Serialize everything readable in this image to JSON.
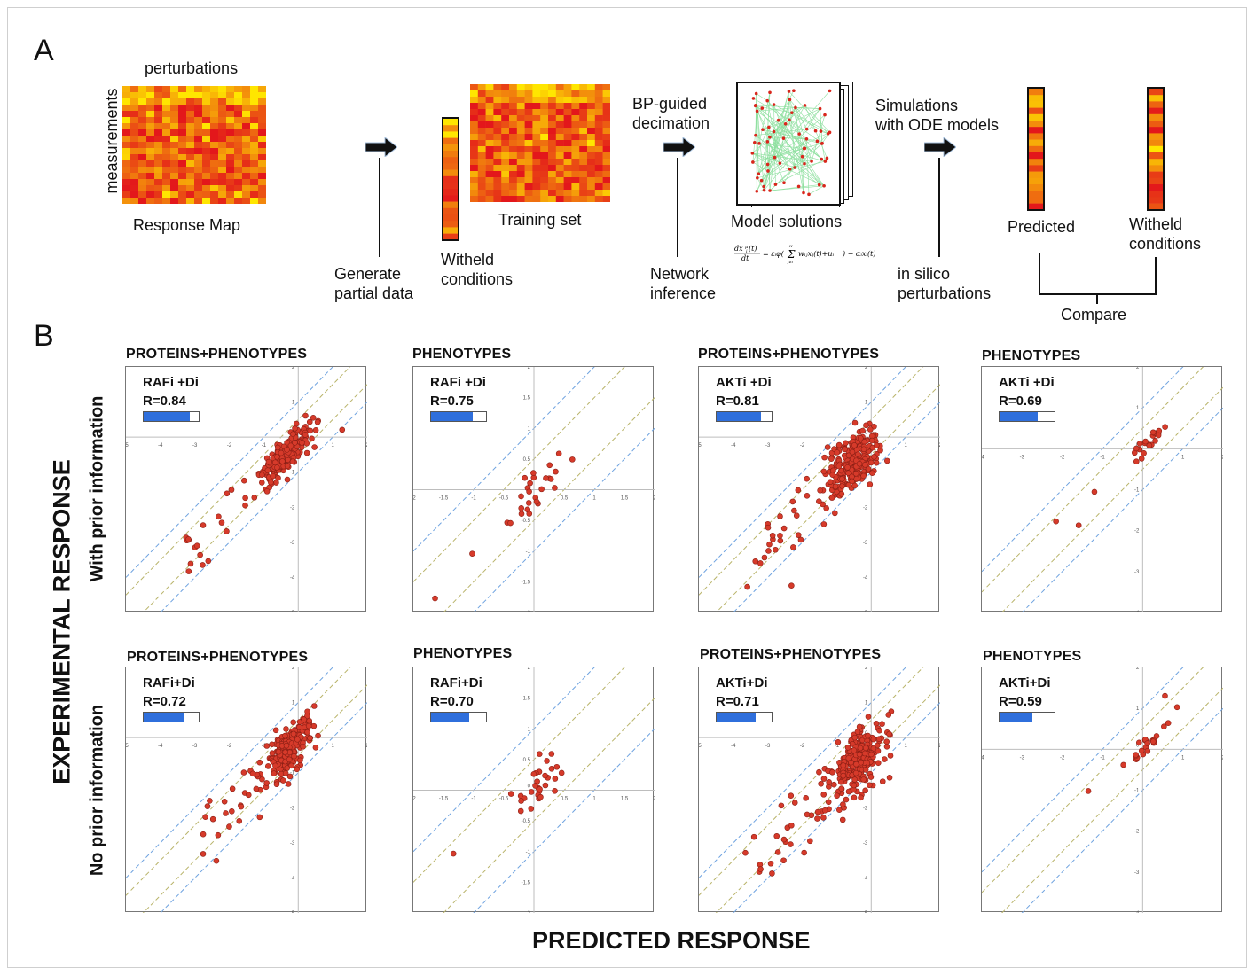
{
  "panel_a": {
    "letter": "A",
    "perturbations": "perturbations",
    "measurements": "measurements",
    "response_map": "Response Map",
    "generate_partial": [
      "Generate",
      "partial data"
    ],
    "witheld_1": [
      "Witheld",
      "conditions"
    ],
    "training_set": "Training set",
    "bp_guided": [
      "BP-guided",
      "decimation"
    ],
    "network_inference": [
      "Network",
      "inference"
    ],
    "model_solutions": "Model solutions",
    "equation": "dx_i^μ(t)/dt = ε_i φ( Σ_{j≠i}^N w_ij x_j^μ(t) + u_i^μ ) − α_i x_i^μ(t)",
    "simulations": [
      "Simulations",
      "with ODE models"
    ],
    "in_silico": [
      "in silico",
      "perturbations"
    ],
    "predicted": "Predicted",
    "witheld_2": [
      "Witheld",
      "conditions"
    ],
    "compare": "Compare"
  },
  "panel_b": {
    "letter": "B",
    "y_label": "EXPERIMENTAL RESPONSE",
    "x_label": "PREDICTED RESPONSE",
    "row_labels": [
      "With prior information",
      "No prior information"
    ]
  },
  "colors": {
    "point": "#d63a2a",
    "point_edge": "#8c1f15",
    "diag_blue": "#6fa3e0",
    "diag_olive": "#b9b46a",
    "rbar": "#2f6fdc",
    "heat_low": "#ffe600",
    "heat_high": "#e3171b"
  },
  "chart_data": [
    {
      "type": "scatter",
      "title": "PROTEINS+PHENOTYPES",
      "condition": "RAFi +Di",
      "r_label": "R=0.84",
      "r": 0.84,
      "xlim": [
        -5,
        2
      ],
      "ylim": [
        -5,
        2
      ],
      "xticks": [
        "-5",
        "-4",
        "-3",
        "-2",
        "-1",
        "0",
        "1",
        "2"
      ],
      "yticks": [
        "2",
        "1",
        "-1",
        "-2",
        "-3",
        "-4",
        "-5"
      ],
      "seed": 11,
      "n": 230,
      "spread": 0.2,
      "center": [
        -0.35,
        -0.45
      ]
    },
    {
      "type": "scatter",
      "title": "PHENOTYPES",
      "condition": "RAFi +Di",
      "r_label": "R=0.75",
      "r": 0.75,
      "xlim": [
        -2,
        2
      ],
      "ylim": [
        -2,
        2
      ],
      "xticks": [
        "-2",
        "-1.5",
        "-1",
        "-0.5",
        "0",
        "0.5",
        "1",
        "1.5",
        "2"
      ],
      "yticks": [
        "2",
        "1.5",
        "1",
        "0.5",
        "-0.5",
        "-1",
        "-1.5",
        "-2"
      ],
      "seed": 23,
      "n": 28,
      "spread": 0.12,
      "center": [
        0.05,
        0.05
      ]
    },
    {
      "type": "scatter",
      "title": "PROTEINS+PHENOTYPES",
      "condition": "AKTi +Di",
      "r_label": "R=0.81",
      "r": 0.81,
      "xlim": [
        -5,
        2
      ],
      "ylim": [
        -5,
        2
      ],
      "xticks": [
        "-5",
        "-4",
        "-3",
        "-2",
        "-1",
        "0",
        "1",
        "2"
      ],
      "yticks": [
        "2",
        "1",
        "-1",
        "-2",
        "-3",
        "-4",
        "-5"
      ],
      "seed": 37,
      "n": 270,
      "spread": 0.35,
      "center": [
        -0.5,
        -0.7
      ]
    },
    {
      "type": "scatter",
      "title": "PHENOTYPES",
      "condition": "AKTi +Di",
      "r_label": "R=0.69",
      "r": 0.69,
      "xlim": [
        -4,
        2
      ],
      "ylim": [
        -4,
        2
      ],
      "xticks": [
        "-4",
        "-3",
        "-2",
        "-1",
        "0",
        "1",
        "2"
      ],
      "yticks": [
        "2",
        "1",
        "-1",
        "-2",
        "-3",
        "-4"
      ],
      "seed": 41,
      "n": 24,
      "spread": 0.1,
      "center": [
        0.1,
        0.1
      ]
    },
    {
      "type": "scatter",
      "title": "PROTEINS+PHENOTYPES",
      "condition": "RAFi+Di",
      "r_label": "R=0.72",
      "r": 0.72,
      "xlim": [
        -5,
        2
      ],
      "ylim": [
        -5,
        2
      ],
      "xticks": [
        "-5",
        "-4",
        "-3",
        "-2",
        "-1",
        "0",
        "1",
        "2"
      ],
      "yticks": [
        "2",
        "1",
        "-1",
        "-2",
        "-3",
        "-4",
        "-5"
      ],
      "seed": 53,
      "n": 260,
      "spread": 0.28,
      "center": [
        -0.3,
        -0.35
      ]
    },
    {
      "type": "scatter",
      "title": "PHENOTYPES",
      "condition": "RAFi+Di",
      "r_label": "R=0.70",
      "r": 0.7,
      "xlim": [
        -2,
        2
      ],
      "ylim": [
        -2,
        2
      ],
      "xticks": [
        "-2",
        "-1.5",
        "-1",
        "-0.5",
        "0",
        "0.5",
        "1",
        "1.5",
        "2"
      ],
      "yticks": [
        "2",
        "1.5",
        "1",
        "0.5",
        "-0.5",
        "-1",
        "-1.5",
        "-2"
      ],
      "seed": 61,
      "n": 30,
      "spread": 0.15,
      "center": [
        0.05,
        0.05
      ]
    },
    {
      "type": "scatter",
      "title": "PROTEINS+PHENOTYPES",
      "condition": "AKTi+Di",
      "r_label": "R=0.71",
      "r": 0.71,
      "xlim": [
        -5,
        2
      ],
      "ylim": [
        -5,
        2
      ],
      "xticks": [
        "-5",
        "-4",
        "-3",
        "-2",
        "-1",
        "0",
        "1",
        "2"
      ],
      "yticks": [
        "2",
        "1",
        "-1",
        "-2",
        "-3",
        "-4",
        "-5"
      ],
      "seed": 71,
      "n": 300,
      "spread": 0.38,
      "center": [
        -0.45,
        -0.75
      ]
    },
    {
      "type": "scatter",
      "title": "PHENOTYPES",
      "condition": "AKTi+Di",
      "r_label": "R=0.59",
      "r": 0.59,
      "xlim": [
        -4,
        2
      ],
      "ylim": [
        -4,
        2
      ],
      "xticks": [
        "-4",
        "-3",
        "-2",
        "-1",
        "0",
        "1",
        "2"
      ],
      "yticks": [
        "2",
        "1",
        "-1",
        "-2",
        "-3",
        "-4"
      ],
      "seed": 83,
      "n": 24,
      "spread": 0.1,
      "center": [
        0.1,
        0.1
      ]
    }
  ]
}
